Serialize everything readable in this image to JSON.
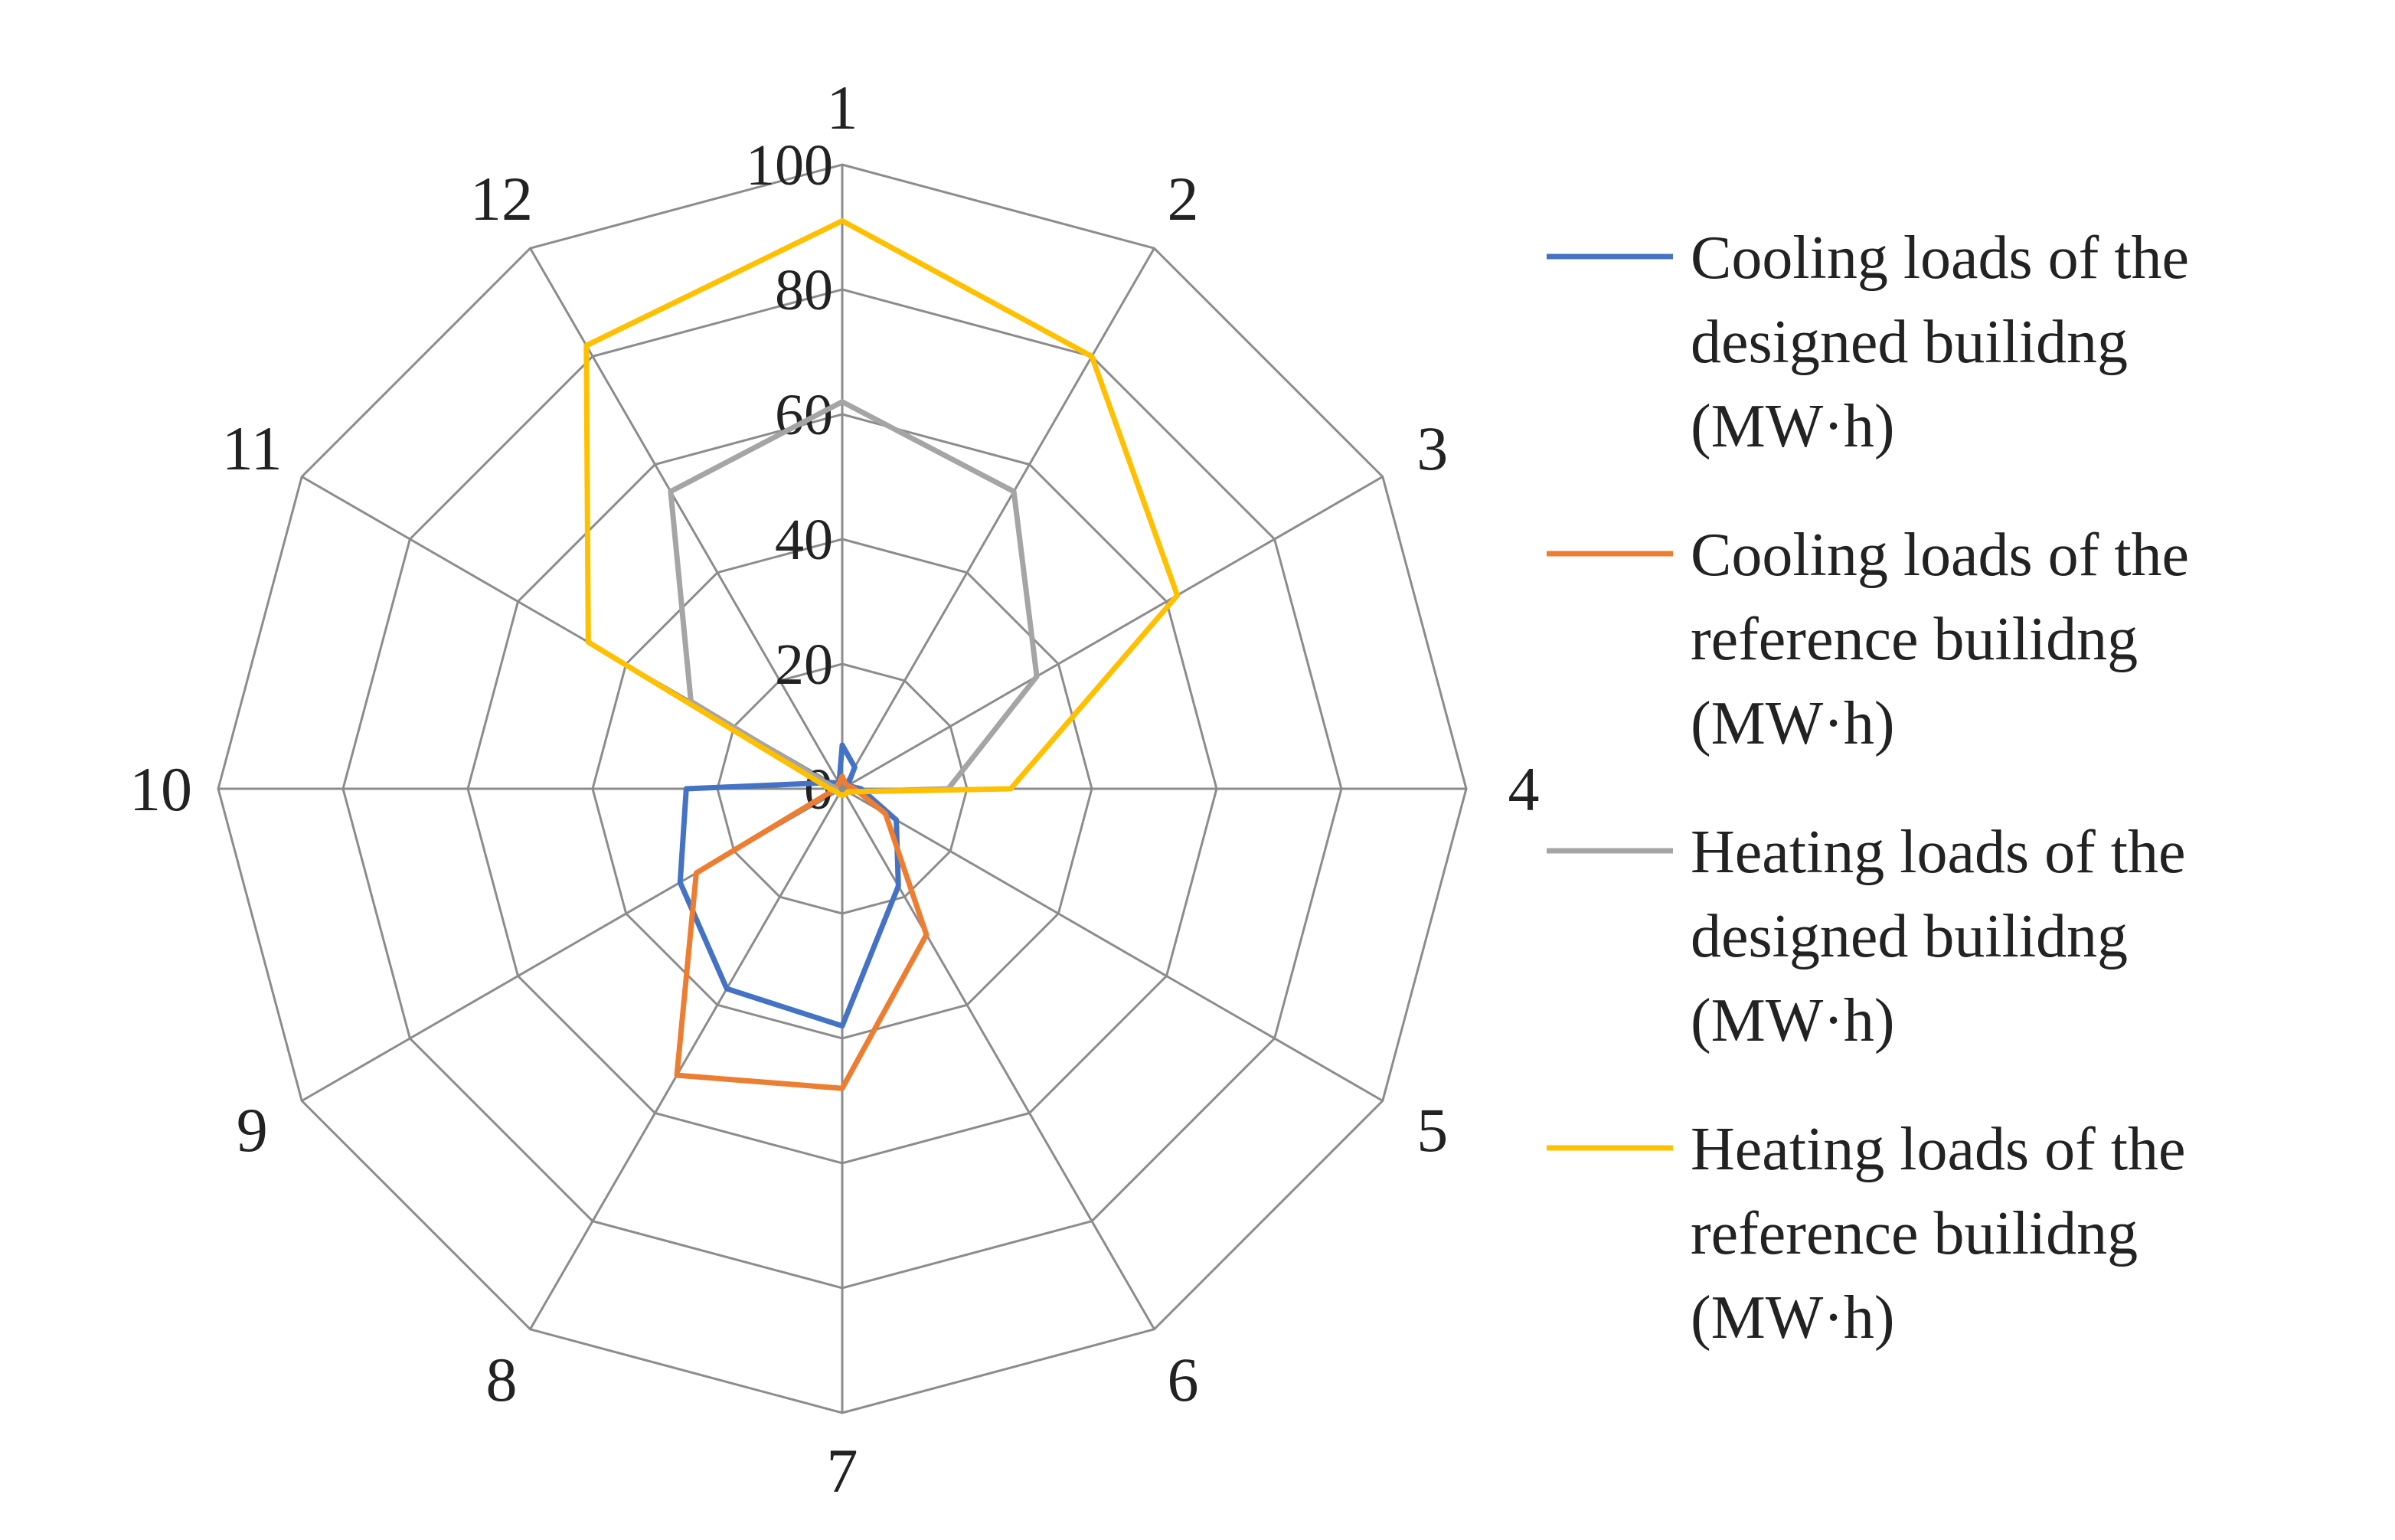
{
  "chart_data": {
    "type": "radar",
    "categories": [
      "1",
      "2",
      "3",
      "4",
      "5",
      "6",
      "7",
      "8",
      "9",
      "10",
      "11",
      "12"
    ],
    "rlim": [
      0,
      100
    ],
    "ticks": [
      "0",
      "20",
      "40",
      "60",
      "80",
      "100"
    ],
    "tick_values": [
      0,
      20,
      40,
      60,
      80,
      100
    ],
    "grid": true,
    "legend_position": "right",
    "series": [
      {
        "name": "Cooling loads of the designed builidng (MW·h)",
        "legend_lines": [
          "Cooling loads of the",
          "designed builidng",
          "(MW·h)"
        ],
        "color": "#4472C4",
        "values": [
          7,
          4,
          1,
          3,
          10,
          18,
          38,
          37,
          30,
          25,
          2,
          1
        ]
      },
      {
        "name": "Cooling loads of the reference builidng (MW·h)",
        "legend_lines": [
          "Cooling loads of the",
          "reference builidng",
          "(MW·h)"
        ],
        "color": "#ED7D31",
        "values": [
          2,
          1,
          1,
          2,
          8,
          27,
          48,
          53,
          27,
          1,
          1,
          1
        ]
      },
      {
        "name": "Heating loads of the designed builidng (MW·h)",
        "legend_lines": [
          "Heating loads of the",
          "designed builidng",
          "(MW·h)"
        ],
        "color": "#A5A5A5",
        "values": [
          62,
          55,
          36,
          17,
          1,
          1,
          1,
          1,
          1,
          1,
          28,
          55
        ]
      },
      {
        "name": "Heating loads of the reference builidng (MW·h)",
        "legend_lines": [
          "Heating loads of the",
          "reference builidng",
          "(MW·h)"
        ],
        "color": "#FFC000",
        "values": [
          91,
          80,
          62,
          27,
          1,
          1,
          1,
          1,
          1,
          2,
          47,
          82
        ]
      }
    ]
  }
}
